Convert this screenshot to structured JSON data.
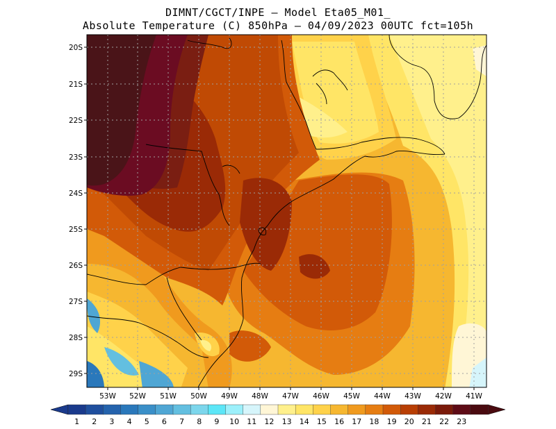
{
  "title": {
    "line1": "DIMNT/CGCT/INPE –  Model Eta05_M01_",
    "line2": "Absolute Temperature (C) 850hPa –  04/09/2023 00UTC fct=105h"
  },
  "axes": {
    "lat_labels": [
      "20S",
      "21S",
      "22S",
      "23S",
      "24S",
      "25S",
      "26S",
      "27S",
      "28S",
      "29S"
    ],
    "lon_labels": [
      "53W",
      "52W",
      "51W",
      "50W",
      "49W",
      "48W",
      "47W",
      "46W",
      "45W",
      "44W",
      "43W",
      "42W",
      "41W"
    ]
  },
  "colorbar": {
    "labels": [
      "1",
      "2",
      "3",
      "4",
      "5",
      "6",
      "7",
      "8",
      "9",
      "10",
      "11",
      "12",
      "13",
      "14",
      "15",
      "16",
      "17",
      "18",
      "19",
      "20",
      "21",
      "22",
      "23"
    ],
    "colors": [
      "#1a3a8c",
      "#1f4f9e",
      "#2463ad",
      "#2a78bb",
      "#3a8fc8",
      "#4fa6d4",
      "#63bfe0",
      "#7cd6ec",
      "#5ce6f7",
      "#9cf0fb",
      "#d6f5fb",
      "#fff6d6",
      "#fff08c",
      "#ffe566",
      "#ffd24a",
      "#f6b730",
      "#f09a1e",
      "#e67d12",
      "#d25a08",
      "#b83e04",
      "#9a2a06",
      "#7a1a0a",
      "#5e0b16",
      "#4a0a10"
    ],
    "arrow_left": "#1a3a8c",
    "arrow_right": "#4a0a10"
  },
  "field_colors": {
    "t23": "#4a1418",
    "t22": "#6b0c22",
    "t21": "#7a1e12",
    "t20": "#9a2a06",
    "t19": "#c04a04",
    "t18": "#d25a08",
    "t17": "#e67d12",
    "t16": "#f09a1e",
    "t15": "#f6b730",
    "t14": "#ffd24a",
    "t13": "#ffe566",
    "t12": "#fff08c",
    "t11": "#fff6d6",
    "t10": "#d6f5fb",
    "t9": "#9cf0fb",
    "c1": "#4fa6d4",
    "c2": "#63bfe0",
    "c3": "#2a78bb"
  }
}
